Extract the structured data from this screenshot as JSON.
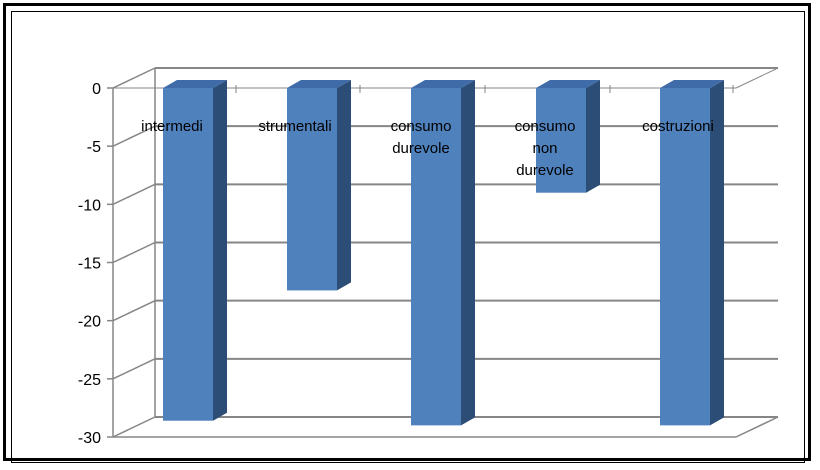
{
  "chart_data": {
    "type": "bar",
    "title": "",
    "xlabel": "",
    "ylabel": "",
    "categories": [
      "intermedi",
      "strumentali",
      "consumo durevole",
      "consumo non durevole",
      "costruzioni"
    ],
    "category_label_lines": [
      [
        "intermedi"
      ],
      [
        "strumentali"
      ],
      [
        "consumo",
        "durevole"
      ],
      [
        "consumo",
        "non",
        "durevole"
      ],
      [
        "costruzioni"
      ]
    ],
    "series": [
      {
        "values": [
          -28.6,
          -17.4,
          -29.0,
          -9.0,
          -29.0
        ]
      }
    ],
    "ylim": [
      -30,
      0
    ],
    "yticks": [
      0,
      -5,
      -10,
      -15,
      -20,
      -25,
      -30
    ],
    "ytick_labels": [
      "0",
      "-5",
      "-10",
      "-15",
      "-20",
      "-25",
      "-30"
    ],
    "grid": true,
    "legend": "none",
    "style": "3d-column",
    "colors": {
      "bar_front": "#4F81BD",
      "bar_side": "#2C4D75",
      "bar_top": "#3F6CA8",
      "grid": "#868686"
    }
  }
}
